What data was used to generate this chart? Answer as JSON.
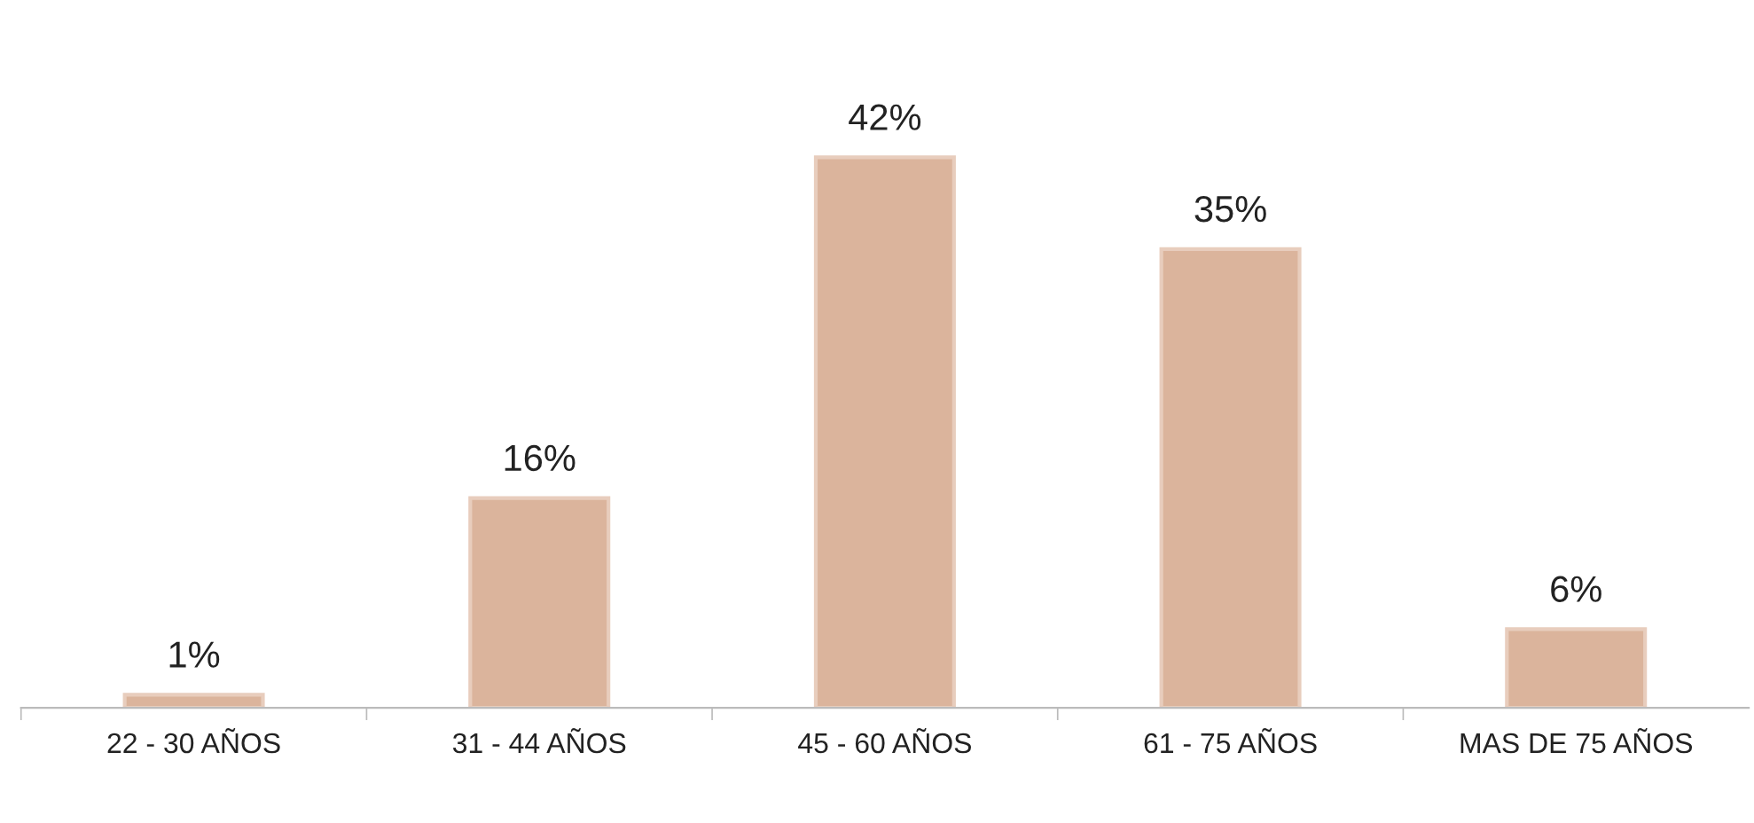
{
  "chart_data": {
    "type": "bar",
    "categories": [
      "22 - 30 AÑOS",
      "31 - 44 AÑOS",
      "45 - 60 AÑOS",
      "61 - 75 AÑOS",
      "MAS DE 75 AÑOS"
    ],
    "values": [
      1,
      16,
      42,
      35,
      6
    ],
    "value_labels": [
      "1%",
      "16%",
      "42%",
      "35%",
      "6%"
    ],
    "color": "#dbb49c",
    "grid": false,
    "legend": false
  }
}
